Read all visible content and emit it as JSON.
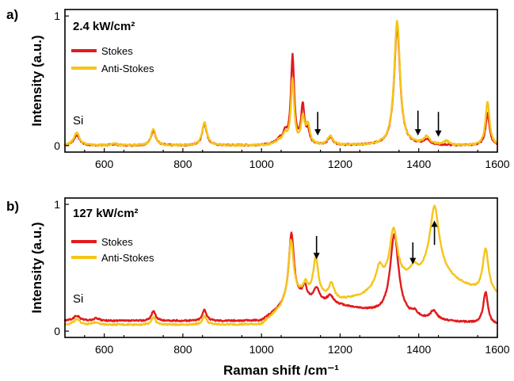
{
  "chart_data": [
    {
      "type": "line",
      "panel_label": "a)",
      "power_label": "2.4 kW/cm²",
      "ylabel": "Intensity (a.u.)",
      "xlim": [
        500,
        1600
      ],
      "ylim": [
        -0.05,
        1.05
      ],
      "xticks": [
        600,
        800,
        1000,
        1200,
        1400,
        1600
      ],
      "yticks": [
        {
          "value": 0,
          "label": "0"
        },
        {
          "value": 1,
          "label": "1"
        }
      ],
      "si_label": "Si",
      "legend_position": "top-left",
      "arrows": [
        {
          "x": 1143,
          "direction": "down",
          "y_from": 0.26,
          "y_to": 0.09
        },
        {
          "x": 1398,
          "direction": "down",
          "y_from": 0.27,
          "y_to": 0.09
        },
        {
          "x": 1450,
          "direction": "down",
          "y_from": 0.26,
          "y_to": 0.08
        }
      ],
      "series": [
        {
          "name": "Stokes",
          "color": "#e31a1c",
          "peaks": [
            [
              530,
              0.08,
              9
            ],
            [
              625,
              0.01,
              10
            ],
            [
              725,
              0.12,
              7
            ],
            [
              855,
              0.17,
              7
            ],
            [
              1045,
              0.04,
              12
            ],
            [
              1060,
              0.08,
              6
            ],
            [
              1079,
              0.68,
              5
            ],
            [
              1105,
              0.3,
              5
            ],
            [
              1118,
              0.1,
              5
            ],
            [
              1175,
              0.06,
              8
            ],
            [
              1345,
              0.92,
              9
            ],
            [
              1420,
              0.04,
              10
            ],
            [
              1575,
              0.25,
              6
            ]
          ]
        },
        {
          "name": "Anti-Stokes",
          "color": "#f5c518",
          "peaks": [
            [
              530,
              0.1,
              9
            ],
            [
              625,
              0.012,
              10
            ],
            [
              725,
              0.13,
              7
            ],
            [
              855,
              0.18,
              7
            ],
            [
              1045,
              0.03,
              12
            ],
            [
              1060,
              0.07,
              6
            ],
            [
              1079,
              0.5,
              5
            ],
            [
              1105,
              0.2,
              5
            ],
            [
              1118,
              0.15,
              6
            ],
            [
              1175,
              0.07,
              8
            ],
            [
              1345,
              0.96,
              9
            ],
            [
              1420,
              0.06,
              10
            ],
            [
              1470,
              0.03,
              8
            ],
            [
              1575,
              0.34,
              6
            ]
          ]
        }
      ]
    },
    {
      "type": "line",
      "panel_label": "b)",
      "power_label": "127 kW/cm²",
      "ylabel": "Intensity (a.u.)",
      "xlabel": "Raman shift /cm⁻¹",
      "xlim": [
        500,
        1600
      ],
      "ylim": [
        -0.05,
        1.05
      ],
      "xticks": [
        600,
        800,
        1000,
        1200,
        1400,
        1600
      ],
      "yticks": [
        {
          "value": 0,
          "label": "0"
        },
        {
          "value": 1,
          "label": "1"
        }
      ],
      "si_label": "Si",
      "legend_position": "middle-left",
      "arrows": [
        {
          "x": 1140,
          "direction": "down",
          "y_from": 0.75,
          "y_to": 0.58
        },
        {
          "x": 1385,
          "direction": "down",
          "y_from": 0.7,
          "y_to": 0.54
        },
        {
          "x": 1440,
          "direction": "up",
          "y_from": 0.68,
          "y_to": 0.86
        }
      ],
      "series": [
        {
          "name": "Stokes",
          "color": "#e31a1c",
          "baseline": [
            [
              500,
              0.08
            ],
            [
              1000,
              0.08
            ],
            [
              1060,
              0.2
            ],
            [
              1100,
              0.25
            ],
            [
              1200,
              0.2
            ],
            [
              1300,
              0.14
            ],
            [
              1400,
              0.09
            ],
            [
              1600,
              0.05
            ]
          ],
          "peaks": [
            [
              530,
              0.04,
              10
            ],
            [
              580,
              0.02,
              8
            ],
            [
              725,
              0.08,
              6
            ],
            [
              855,
              0.09,
              6
            ],
            [
              1076,
              0.55,
              8
            ],
            [
              1110,
              0.1,
              6
            ],
            [
              1140,
              0.1,
              8
            ],
            [
              1175,
              0.06,
              10
            ],
            [
              1338,
              0.64,
              13
            ],
            [
              1390,
              0.04,
              10
            ],
            [
              1438,
              0.07,
              10
            ],
            [
              1570,
              0.25,
              7
            ]
          ]
        },
        {
          "name": "Anti-Stokes",
          "color": "#f5c518",
          "baseline": [
            [
              500,
              0.05
            ],
            [
              1000,
              0.05
            ],
            [
              1060,
              0.2
            ],
            [
              1100,
              0.28
            ],
            [
              1200,
              0.24
            ],
            [
              1260,
              0.28
            ],
            [
              1300,
              0.35
            ],
            [
              1400,
              0.42
            ],
            [
              1440,
              0.5
            ],
            [
              1500,
              0.38
            ],
            [
              1560,
              0.3
            ],
            [
              1600,
              0.28
            ]
          ],
          "peaks": [
            [
              530,
              0.04,
              10
            ],
            [
              580,
              0.02,
              8
            ],
            [
              725,
              0.06,
              6
            ],
            [
              855,
              0.07,
              6
            ],
            [
              1075,
              0.48,
              8
            ],
            [
              1112,
              0.08,
              6
            ],
            [
              1138,
              0.3,
              8
            ],
            [
              1178,
              0.12,
              8
            ],
            [
              1300,
              0.14,
              10
            ],
            [
              1336,
              0.42,
              12
            ],
            [
              1388,
              0.08,
              10
            ],
            [
              1440,
              0.48,
              14
            ],
            [
              1570,
              0.35,
              9
            ]
          ]
        }
      ]
    }
  ]
}
